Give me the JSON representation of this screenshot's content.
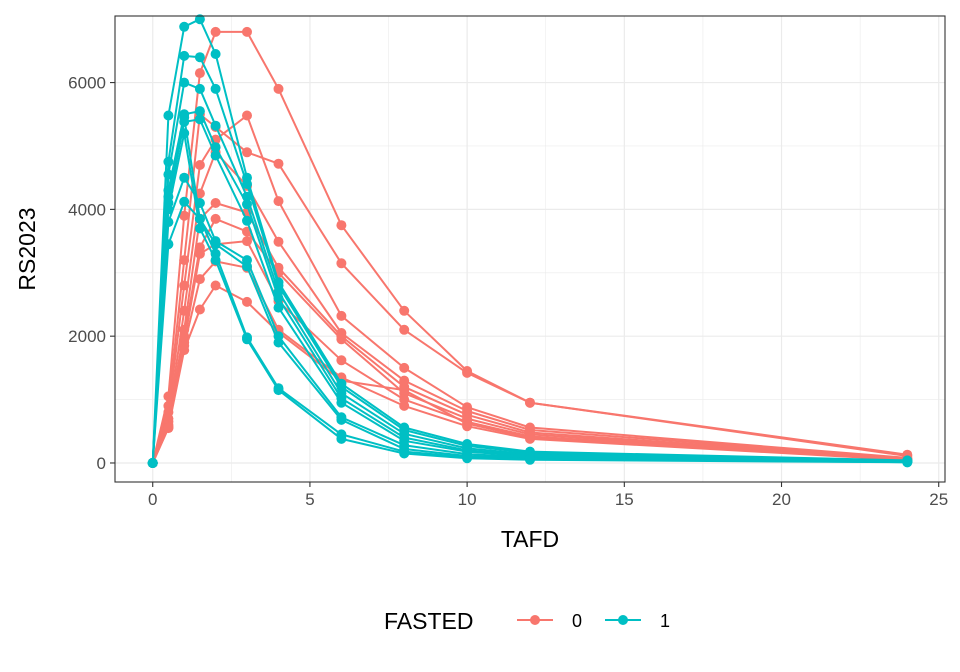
{
  "chart_data": {
    "type": "line",
    "xlabel": "TAFD",
    "ylabel": "RS2023",
    "xlim": [
      -1.2,
      25.2
    ],
    "ylim": [
      -300,
      7050
    ],
    "xticks": [
      0,
      5,
      10,
      15,
      20,
      25
    ],
    "yticks": [
      0,
      2000,
      4000,
      6000
    ],
    "xtick_labels": [
      "0",
      "5",
      "10",
      "15",
      "20",
      "25"
    ],
    "ytick_labels": [
      "0",
      "2000",
      "4000",
      "6000"
    ],
    "grid": true,
    "legend": {
      "title": "FASTED",
      "position": "bottom",
      "entries": [
        {
          "label": "0",
          "color": "#F8766D"
        },
        {
          "label": "1",
          "color": "#00BFC4"
        }
      ]
    },
    "times": [
      0,
      0.5,
      1,
      1.5,
      2,
      3,
      4,
      6,
      8,
      10,
      12,
      24
    ],
    "series": [
      {
        "group": "0",
        "color": "#F8766D",
        "values": [
          0,
          1050,
          3900,
          6150,
          6800,
          6800,
          5900,
          3750,
          2400,
          1450,
          950,
          130
        ]
      },
      {
        "group": "0",
        "color": "#F8766D",
        "values": [
          0,
          900,
          3200,
          5500,
          5300,
          4900,
          4720,
          3150,
          2100,
          1420,
          950,
          110
        ]
      },
      {
        "group": "0",
        "color": "#F8766D",
        "values": [
          0,
          800,
          2800,
          4700,
          5100,
          5480,
          4130,
          2320,
          1500,
          880,
          560,
          80
        ]
      },
      {
        "group": "0",
        "color": "#F8766D",
        "values": [
          0,
          700,
          2400,
          4250,
          4900,
          4370,
          3490,
          2050,
          1300,
          820,
          520,
          70
        ]
      },
      {
        "group": "0",
        "color": "#F8766D",
        "values": [
          0,
          650,
          2100,
          3850,
          4100,
          3950,
          3080,
          2000,
          1200,
          760,
          480,
          60
        ]
      },
      {
        "group": "0",
        "color": "#F8766D",
        "values": [
          0,
          600,
          2000,
          3400,
          3850,
          3650,
          3000,
          1950,
          1100,
          700,
          450,
          55
        ]
      },
      {
        "group": "0",
        "color": "#F8766D",
        "values": [
          0,
          580,
          1900,
          3300,
          3450,
          3500,
          2550,
          1620,
          1000,
          650,
          420,
          50
        ]
      },
      {
        "group": "0",
        "color": "#F8766D",
        "values": [
          0,
          560,
          1850,
          2900,
          3180,
          3080,
          2100,
          1350,
          900,
          580,
          380,
          45
        ]
      },
      {
        "group": "0",
        "color": "#F8766D",
        "values": [
          0,
          550,
          1780,
          2420,
          2800,
          2540,
          2060,
          1300,
          1150,
          620,
          400,
          50
        ]
      },
      {
        "group": "1",
        "color": "#00BFC4",
        "values": [
          0,
          5480,
          6880,
          7000,
          6450,
          4500,
          2850,
          1250,
          560,
          300,
          180,
          40
        ]
      },
      {
        "group": "1",
        "color": "#00BFC4",
        "values": [
          0,
          4750,
          6420,
          6400,
          5900,
          4400,
          2800,
          1200,
          520,
          270,
          160,
          35
        ]
      },
      {
        "group": "1",
        "color": "#00BFC4",
        "values": [
          0,
          4550,
          6000,
          5900,
          5320,
          4200,
          2700,
          1100,
          460,
          230,
          140,
          30
        ]
      },
      {
        "group": "1",
        "color": "#00BFC4",
        "values": [
          0,
          4300,
          5500,
          5550,
          4980,
          4080,
          2600,
          1020,
          400,
          200,
          120,
          25
        ]
      },
      {
        "group": "1",
        "color": "#00BFC4",
        "values": [
          0,
          4100,
          5380,
          5420,
          4850,
          3820,
          2450,
          950,
          350,
          180,
          100,
          20
        ]
      },
      {
        "group": "1",
        "color": "#00BFC4",
        "values": [
          0,
          3800,
          4500,
          4100,
          3500,
          3200,
          2000,
          720,
          280,
          140,
          90,
          18
        ]
      },
      {
        "group": "1",
        "color": "#00BFC4",
        "values": [
          0,
          3450,
          4120,
          3850,
          3450,
          3100,
          1900,
          680,
          220,
          110,
          70,
          15
        ]
      },
      {
        "group": "1",
        "color": "#00BFC4",
        "values": [
          0,
          4200,
          5450,
          3850,
          3300,
          1980,
          1180,
          450,
          180,
          90,
          60,
          12
        ]
      },
      {
        "group": "1",
        "color": "#00BFC4",
        "values": [
          0,
          4000,
          5200,
          3700,
          3200,
          1950,
          1150,
          380,
          150,
          75,
          50,
          10
        ]
      }
    ]
  }
}
